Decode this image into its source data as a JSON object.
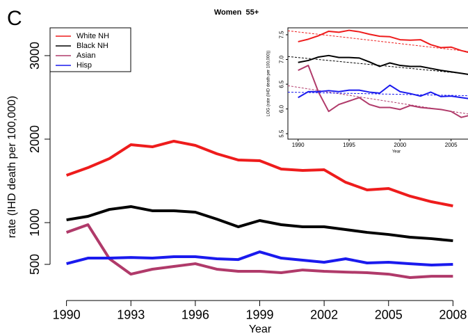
{
  "chart_data": [
    {
      "type": "line",
      "panel_label": "C",
      "title": "Women  55+",
      "xlabel": "Year",
      "ylabel": "rate (IHD death per 100,000)",
      "legend": "upper left",
      "x": [
        1990,
        1991,
        1992,
        1993,
        1994,
        1995,
        1996,
        1997,
        1998,
        1999,
        2000,
        2001,
        2002,
        2003,
        2004,
        2005,
        2006,
        2007,
        2008
      ],
      "xlim": [
        1989.3,
        2008.7
      ],
      "ylim": [
        67,
        3333
      ],
      "xticks": [
        1990,
        1993,
        1996,
        1999,
        2002,
        2005,
        2008
      ],
      "yticks": [
        500,
        1000,
        2000,
        3000
      ],
      "series": [
        {
          "name": "White NH",
          "color": "#ee1c1c",
          "values": [
            1567,
            1658,
            1767,
            1933,
            1908,
            1975,
            1925,
            1825,
            1750,
            1742,
            1642,
            1625,
            1633,
            1483,
            1392,
            1408,
            1317,
            1250,
            1200
          ]
        },
        {
          "name": "Black NH",
          "color": "#000000",
          "values": [
            1033,
            1075,
            1158,
            1192,
            1142,
            1142,
            1125,
            1042,
            950,
            1025,
            975,
            950,
            950,
            917,
            883,
            858,
            825,
            808,
            783
          ]
        },
        {
          "name": "Asian",
          "color": "#b03a6a",
          "values": [
            883,
            975,
            567,
            383,
            442,
            475,
            508,
            442,
            417,
            417,
            400,
            433,
            417,
            408,
            400,
            383,
            342,
            358,
            358
          ]
        },
        {
          "name": "Hisp",
          "color": "#1a1aee",
          "values": [
            508,
            575,
            575,
            583,
            575,
            592,
            592,
            567,
            558,
            650,
            575,
            550,
            525,
            567,
            517,
            525,
            508,
            492,
            500
          ]
        }
      ]
    },
    {
      "type": "line",
      "xlabel": "Year",
      "ylabel": "LOG (rate (IHD death per 100,000))",
      "x": [
        1990,
        1991,
        1992,
        1993,
        1994,
        1995,
        1996,
        1997,
        1998,
        1999,
        2000,
        2001,
        2002,
        2003,
        2004,
        2005,
        2006,
        2007,
        2008
      ],
      "xlim": [
        1989,
        2008.5
      ],
      "ylim": [
        5.39,
        7.64
      ],
      "xticks": [
        1990,
        1995,
        2000,
        2005
      ],
      "yticks": [
        5.5,
        {
          "value": 6,
          "label": "6.0"
        },
        6.5,
        {
          "value": 7,
          "label": "7.0"
        },
        7.5
      ],
      "series": [
        {
          "color": "#ee1c1c",
          "values": [
            7.36,
            7.41,
            7.48,
            7.57,
            7.55,
            7.59,
            7.56,
            7.51,
            7.47,
            7.46,
            7.4,
            7.39,
            7.4,
            7.3,
            7.24,
            7.25,
            7.18,
            7.13,
            7.09
          ],
          "trend_x": [
            1989,
            2008.5
          ],
          "trend": [
            7.58,
            7.12
          ]
        },
        {
          "color": "#000000",
          "values": [
            6.94,
            6.98,
            7.05,
            7.08,
            7.04,
            7.04,
            7.03,
            6.95,
            6.86,
            6.93,
            6.88,
            6.86,
            6.86,
            6.82,
            6.78,
            6.75,
            6.72,
            6.69,
            6.66
          ],
          "trend_x": [
            1989,
            2008.5
          ],
          "trend": [
            7.06,
            6.67
          ]
        },
        {
          "color": "#b03a6a",
          "values": [
            6.78,
            6.88,
            6.34,
            5.95,
            6.09,
            6.16,
            6.23,
            6.09,
            6.03,
            6.03,
            5.99,
            6.07,
            6.03,
            6.01,
            5.99,
            5.95,
            5.83,
            5.88,
            5.88
          ],
          "trend_x": [
            1989,
            2008.5
          ],
          "trend": [
            6.47,
            5.84
          ]
        },
        {
          "color": "#1a1aee",
          "values": [
            6.23,
            6.35,
            6.35,
            6.37,
            6.35,
            6.38,
            6.38,
            6.34,
            6.32,
            6.48,
            6.35,
            6.31,
            6.26,
            6.34,
            6.25,
            6.26,
            6.23,
            6.2,
            6.21
          ],
          "trend_x": [
            1989,
            2008.5
          ],
          "trend": [
            6.34,
            6.26
          ]
        }
      ]
    }
  ]
}
